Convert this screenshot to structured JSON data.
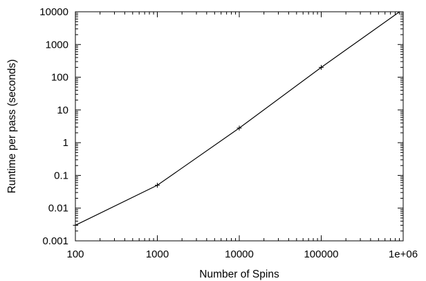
{
  "chart_data": {
    "type": "line",
    "xlabel": "Number of Spins",
    "ylabel": "Runtime per pass (seconds)",
    "xscale": "log",
    "yscale": "log",
    "xlim": [
      100,
      1000000
    ],
    "ylim": [
      0.001,
      10000
    ],
    "x_ticks": [
      100,
      1000,
      10000,
      100000,
      1000000
    ],
    "x_tick_labels": [
      "100",
      "1000",
      "10000",
      "100000",
      "1e+06"
    ],
    "y_ticks": [
      0.001,
      0.01,
      0.1,
      1,
      10,
      100,
      1000,
      10000
    ],
    "y_tick_labels": [
      "0.001",
      "0.01",
      "0.1",
      "1",
      "10",
      "100",
      "1000",
      "10000"
    ],
    "grid": false,
    "legend": "none",
    "series": [
      {
        "x": [
          100,
          1000,
          10000,
          100000,
          1000000
        ],
        "y": [
          0.003,
          0.05,
          2.8,
          200,
          12000
        ],
        "markers": [
          true,
          true,
          true,
          true,
          false
        ]
      }
    ],
    "colors": {
      "line": "#000000",
      "axes": "#000000",
      "background": "#ffffff"
    }
  }
}
